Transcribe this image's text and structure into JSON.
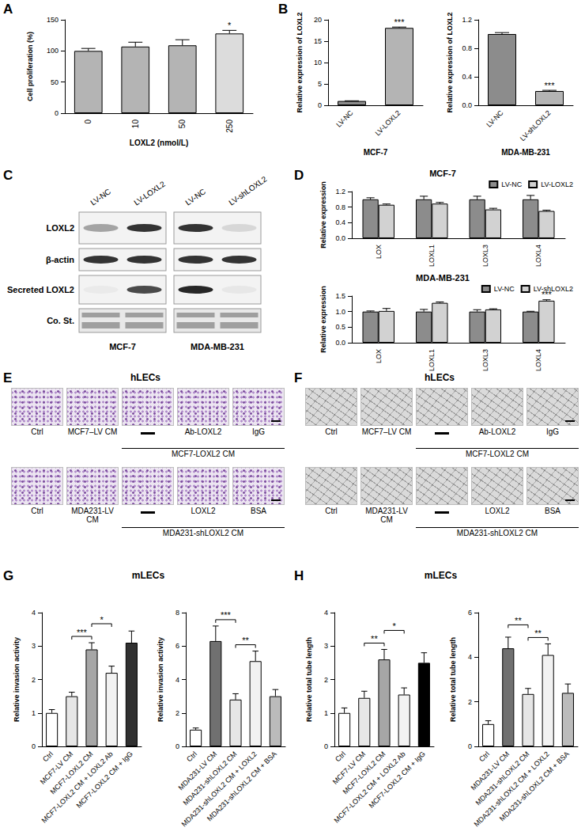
{
  "chart_data": [
    {
      "panel": "A",
      "type": "bar",
      "y_label": "Cell proliferation (%)",
      "x_label": "LOXL2 (nmol/L)",
      "categories": [
        "0",
        "10",
        "50",
        "250"
      ],
      "values": [
        100,
        107,
        109,
        128
      ],
      "errors": [
        4,
        7,
        9,
        5
      ],
      "colors": [
        "#b4b4b4",
        "#b4b4b4",
        "#b4b4b4",
        "#dcdcdc"
      ],
      "significance": [
        null,
        null,
        null,
        "*"
      ],
      "ylim": [
        0,
        150
      ],
      "yticks": [
        0,
        50,
        100,
        150
      ],
      "grid": false
    },
    {
      "panel": "B",
      "type": "bar",
      "y_label": "Relative expression of LOXL2",
      "x_label": "MCF-7",
      "categories": [
        "LV-NC",
        "LV-LOXL2"
      ],
      "values": [
        1,
        18.1
      ],
      "errors": [
        0.05,
        0.2
      ],
      "colors": [
        "#8c8c8c",
        "#b4b4b4"
      ],
      "significance": [
        null,
        "***"
      ],
      "ylim": [
        0,
        20
      ],
      "yticks": [
        0,
        5,
        10,
        15,
        20
      ],
      "grid": false
    },
    {
      "type": "bar",
      "y_label": "Relative expression of LOXL2",
      "x_label": "MDA-MB-231",
      "categories": [
        "LV-NC",
        "LV-shLOXL2"
      ],
      "values": [
        1,
        0.2
      ],
      "errors": [
        0.02,
        0.01
      ],
      "colors": [
        "#8c8c8c",
        "#b4b4b4"
      ],
      "significance": [
        null,
        "***"
      ],
      "ylim": [
        0,
        1.2
      ],
      "yticks": [
        {
          "value": 0,
          "label": "0.0"
        },
        0.4,
        0.8,
        1.2
      ],
      "grid": false
    },
    {
      "panel": "D",
      "type": "bar",
      "title": "MCF-7",
      "y_label": "Relative expression",
      "categories": [
        "LOX",
        "LOXL1",
        "LOXL3",
        "LOXL4"
      ],
      "series": [
        {
          "name": "LV-NC",
          "color": "#8c8c8c",
          "values": [
            1,
            1,
            1,
            1
          ],
          "errors": [
            0.04,
            0.08,
            0.08,
            0.1
          ]
        },
        {
          "name": "LV-LOXL2",
          "color": "#d2d2d2",
          "values": [
            0.86,
            0.89,
            0.74,
            0.7
          ],
          "errors": [
            0.02,
            0.03,
            0.03,
            0.02
          ]
        }
      ],
      "legend": "upper right",
      "ylim": [
        0,
        1.2
      ],
      "yticks": [
        {
          "value": 0,
          "label": "0.0"
        },
        0.4,
        0.8,
        1.2
      ],
      "grid": false
    },
    {
      "type": "bar",
      "title": "MDA-MB-231",
      "y_label": "Relative expression",
      "categories": [
        "LOX",
        "LOXL1",
        "LOXL3",
        "LOXL4"
      ],
      "series": [
        {
          "name": "LV-NC",
          "color": "#8c8c8c",
          "values": [
            1,
            1,
            1,
            1
          ],
          "errors": [
            0.02,
            0.07,
            0.06,
            0.01
          ]
        },
        {
          "name": "LV-shLOXL2",
          "color": "#d2d2d2",
          "values": [
            1.02,
            1.28,
            1.07,
            1.35
          ],
          "errors": [
            0.08,
            0.03,
            0.02,
            0.03
          ],
          "significance": [
            null,
            null,
            null,
            "***"
          ]
        }
      ],
      "legend": "upper right",
      "ylim": [
        0,
        1.5
      ],
      "yticks": [
        {
          "value": 0,
          "label": "0.0"
        },
        0.5,
        {
          "value": 1,
          "label": "1.0"
        },
        1.5
      ],
      "grid": false
    },
    {
      "panel": "G",
      "heading": "mLECs",
      "type": "bar",
      "y_label": "Relative invasion activity",
      "categories": [
        "Ctrl",
        "MCF7-LV CM",
        "MCF7-LOXL2 CM",
        "MCF7-LOXL2 CM + LOXL2 Ab",
        "MCF7-LOXL2 CM + IgG"
      ],
      "values": [
        1,
        1.5,
        2.9,
        2.2,
        3.1
      ],
      "errors": [
        0.1,
        0.12,
        0.2,
        0.2,
        0.35
      ],
      "colors": [
        "#ffffff",
        "#e6e6e6",
        "#a6a6a6",
        "#f2f2f2",
        "#303030"
      ],
      "comparisons": [
        {
          "from": "MCF7-LV CM",
          "to": "MCF7-LOXL2 CM",
          "label": "***"
        },
        {
          "from": "MCF7-LOXL2 CM",
          "to": "MCF7-LOXL2 CM + LOXL2 Ab",
          "label": "*"
        }
      ],
      "ylim": [
        0,
        4
      ],
      "yticks": [
        0,
        1,
        2,
        3,
        4
      ],
      "grid": false
    },
    {
      "type": "bar",
      "y_label": "Relative invasion activity",
      "categories": [
        "Ctrl",
        "MDA231-LV CM",
        "MDA231-shLOXL2 CM",
        "MDA231-shLOXL2 CM + LOXL2",
        "MDA231-shLOXL2 CM + BSA"
      ],
      "values": [
        1,
        6.3,
        2.8,
        5.1,
        3.0
      ],
      "errors": [
        0.1,
        0.9,
        0.35,
        0.6,
        0.4
      ],
      "colors": [
        "#ffffff",
        "#707070",
        "#e6e6e6",
        "#f2f2f2",
        "#bbbbbb"
      ],
      "comparisons": [
        {
          "from": "MDA231-LV CM",
          "to": "MDA231-shLOXL2 CM",
          "label": "***"
        },
        {
          "from": "MDA231-shLOXL2 CM",
          "to": "MDA231-shLOXL2 CM + LOXL2",
          "label": "**"
        }
      ],
      "ylim": [
        0,
        8
      ],
      "yticks": [
        0,
        2,
        4,
        6,
        8
      ],
      "grid": false
    },
    {
      "panel": "H",
      "heading": "mLECs",
      "type": "bar",
      "y_label": "Relative total tube length",
      "categories": [
        "Ctrl",
        "MCF7-LV CM",
        "MCF7-LOXL2 CM",
        "MCF7-LOXL2 CM + LOXL2 Ab",
        "MCF7-LOXL2 CM + IgG"
      ],
      "values": [
        1,
        1.45,
        2.6,
        1.55,
        2.5
      ],
      "errors": [
        0.15,
        0.2,
        0.3,
        0.2,
        0.3
      ],
      "colors": [
        "#ffffff",
        "#e6e6e6",
        "#a6a6a6",
        "#f2f2f2",
        "#000000"
      ],
      "comparisons": [
        {
          "from": "MCF7-LV CM",
          "to": "MCF7-LOXL2 CM",
          "label": "**"
        },
        {
          "from": "MCF7-LOXL2 CM",
          "to": "MCF7-LOXL2 CM + LOXL2 Ab",
          "label": "*"
        }
      ],
      "ylim": [
        0,
        4
      ],
      "yticks": [
        0,
        1,
        2,
        3,
        4
      ],
      "grid": false
    },
    {
      "type": "bar",
      "y_label": "Relative total tube length",
      "categories": [
        "Ctrl",
        "MDA231-LV CM",
        "MDA231-shLOXL2 CM",
        "MDA231-shLOXL2 CM + LOXL2",
        "MDA231-shLOXL2 CM + BSA"
      ],
      "values": [
        1,
        4.4,
        2.35,
        4.1,
        2.4
      ],
      "errors": [
        0.15,
        0.5,
        0.25,
        0.5,
        0.4
      ],
      "colors": [
        "#ffffff",
        "#707070",
        "#e6e6e6",
        "#f2f2f2",
        "#bbbbbb"
      ],
      "comparisons": [
        {
          "from": "MDA231-LV CM",
          "to": "MDA231-shLOXL2 CM",
          "label": "**"
        },
        {
          "from": "MDA231-shLOXL2 CM",
          "to": "MDA231-shLOXL2 CM + LOXL2",
          "label": "**"
        }
      ],
      "ylim": [
        0,
        6
      ],
      "yticks": [
        0,
        2,
        4,
        6
      ],
      "grid": false
    }
  ],
  "blot": {
    "panel": "C",
    "rows": [
      "LOXL2",
      "β-actin",
      "Secreted LOXL2",
      "Co. St."
    ],
    "blocks": [
      {
        "lanes": [
          "LV-NC",
          "LV-LOXL2"
        ],
        "cell_line": "MCF-7"
      },
      {
        "lanes": [
          "LV-NC",
          "LV-shLOXL2"
        ],
        "cell_line": "MDA-MB-231"
      }
    ]
  },
  "micrographs": [
    {
      "panel": "E",
      "title": "hLECs",
      "rows": [
        {
          "labels": [
            "Ctrl",
            "MCF7–LV CM",
            null,
            "Ab-LOXL2",
            "IgG"
          ],
          "group_label": "MCF7-LOXL2 CM"
        },
        {
          "labels": [
            "Ctrl",
            "MDA231-LV CM",
            null,
            "LOXL2",
            "BSA"
          ],
          "group_label": "MDA231-shLOXL2 CM"
        }
      ]
    },
    {
      "panel": "F",
      "title": "hLECs",
      "rows": [
        {
          "labels": [
            "Ctrl",
            "MCF7–LV CM",
            null,
            "Ab-LOXL2",
            "IgG"
          ],
          "group_label": "MCF7-LOXL2 CM"
        },
        {
          "labels": [
            "Ctrl",
            "MDA231-LV CM",
            null,
            "LOXL2",
            "BSA"
          ],
          "group_label": "MDA231-shLOXL2 CM"
        }
      ]
    }
  ]
}
